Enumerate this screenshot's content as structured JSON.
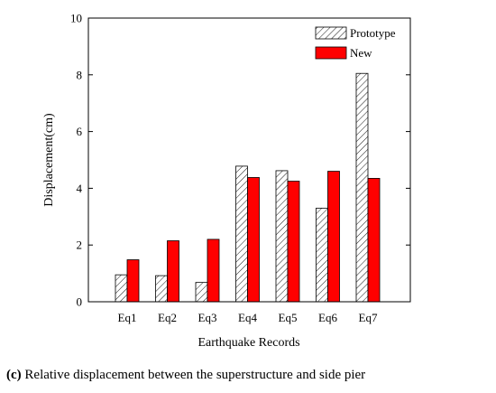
{
  "chart_data": {
    "type": "bar",
    "categories": [
      "Eq1",
      "Eq2",
      "Eq3",
      "Eq4",
      "Eq5",
      "Eq6",
      "Eq7"
    ],
    "series": [
      {
        "name": "Prototype",
        "values": [
          0.95,
          0.92,
          0.68,
          4.78,
          4.62,
          3.3,
          8.05
        ],
        "pattern": "hatch",
        "color": "#ffffff"
      },
      {
        "name": "New",
        "values": [
          1.48,
          2.15,
          2.2,
          4.38,
          4.25,
          4.6,
          4.35
        ],
        "pattern": "solid",
        "color": "#ff0000"
      }
    ],
    "xlabel": "Earthquake Records",
    "ylabel": "Displacement(cm)",
    "ylim": [
      0,
      10
    ],
    "yticks": [
      0,
      2,
      4,
      6,
      8,
      10
    ],
    "legend_position": "top-right",
    "grid": false
  },
  "caption": {
    "label": "(c)",
    "text": " Relative displacement between the superstructure and side pier"
  }
}
